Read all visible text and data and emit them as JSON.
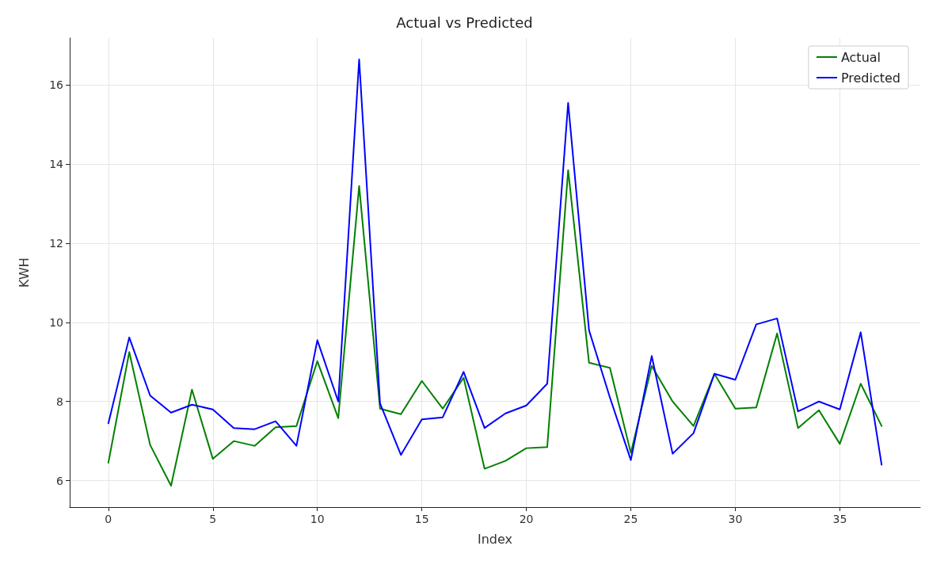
{
  "chart_data": {
    "type": "line",
    "title": "Actual vs Predicted",
    "xlabel": "Index",
    "ylabel": "KWH",
    "x": [
      0,
      1,
      2,
      3,
      4,
      5,
      6,
      7,
      8,
      9,
      10,
      11,
      12,
      13,
      14,
      15,
      16,
      17,
      18,
      19,
      20,
      21,
      22,
      23,
      24,
      25,
      26,
      27,
      28,
      29,
      30,
      31,
      32,
      33,
      34,
      35,
      36,
      37
    ],
    "series": [
      {
        "name": "Actual",
        "color": "#008000",
        "values": [
          6.45,
          9.25,
          6.9,
          5.87,
          8.3,
          6.55,
          7.0,
          6.88,
          7.35,
          7.38,
          9.02,
          7.58,
          13.45,
          7.82,
          7.68,
          8.52,
          7.82,
          8.6,
          6.3,
          6.5,
          6.82,
          6.85,
          13.85,
          8.98,
          8.85,
          6.7,
          8.9,
          8.0,
          7.38,
          8.7,
          7.82,
          7.85,
          9.72,
          7.33,
          7.78,
          6.93,
          8.45,
          7.38
        ]
      },
      {
        "name": "Predicted",
        "color": "#0000ff",
        "values": [
          7.45,
          9.62,
          8.15,
          7.72,
          7.92,
          7.8,
          7.33,
          7.3,
          7.5,
          6.88,
          9.55,
          8.0,
          16.65,
          7.95,
          6.65,
          7.55,
          7.6,
          8.75,
          7.33,
          7.7,
          7.9,
          8.45,
          15.55,
          9.8,
          8.1,
          6.52,
          9.15,
          6.68,
          7.2,
          8.7,
          8.55,
          9.95,
          10.1,
          7.75,
          8.0,
          7.8,
          9.75,
          6.4
        ]
      }
    ],
    "xlim": [
      -1.85,
      38.85
    ],
    "xticks": [
      0,
      5,
      10,
      15,
      20,
      25,
      30,
      35
    ],
    "ylim": [
      5.33,
      17.19
    ],
    "yticks": [
      6,
      8,
      10,
      12,
      14,
      16
    ],
    "grid": true,
    "legend": "top right"
  }
}
